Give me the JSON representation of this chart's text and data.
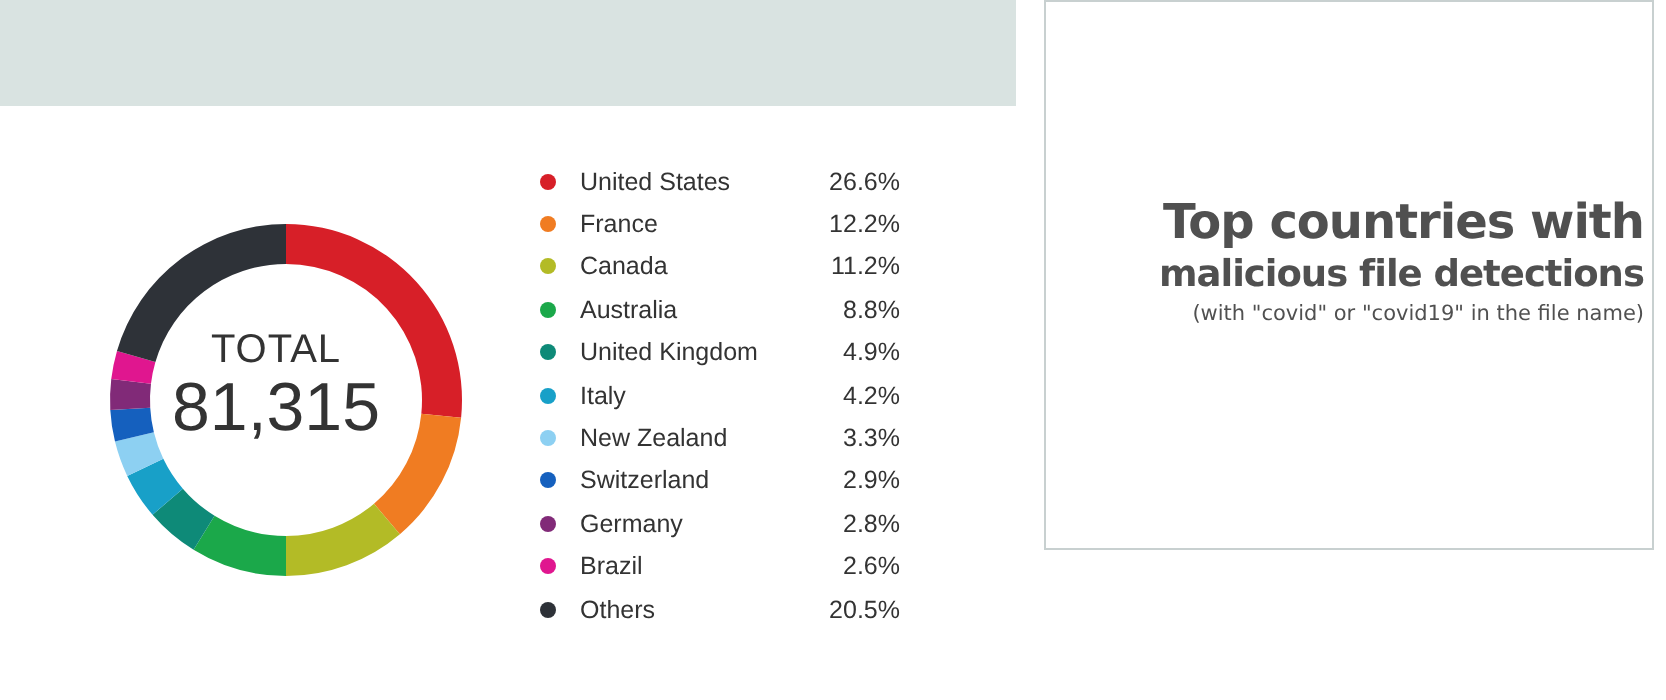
{
  "chart_data": {
    "type": "donut",
    "title": "Top countries with",
    "subtitle": "malicious file detections",
    "annotations": [
      "TOTAL",
      "81,315",
      "(with \"covid\" or \"covid19\" in the file name)"
    ],
    "categories": [
      "United States",
      "France",
      "Canada",
      "Australia",
      "United Kingdom",
      "Italy",
      "New Zealand",
      "Switzerland",
      "Germany",
      "Brazil",
      "Others"
    ],
    "values": [
      26.6,
      12.2,
      11.2,
      8.8,
      4.9,
      4.2,
      3.3,
      2.9,
      2.8,
      2.6,
      20.5
    ],
    "value_labels": [
      "26.6%",
      "12.2%",
      "11.2%",
      "8.8%",
      "4.9%",
      "4.2%",
      "3.3%",
      "2.9%",
      "2.8%",
      "2.6%",
      "20.5%"
    ],
    "colors": [
      "#d71f28",
      "#f07c22",
      "#b3bb26",
      "#1ba84a",
      "#0e8a78",
      "#18a0c8",
      "#8dd0f2",
      "#1560be",
      "#812a78",
      "#e0168f",
      "#2e3238"
    ],
    "legend": "right"
  }
}
